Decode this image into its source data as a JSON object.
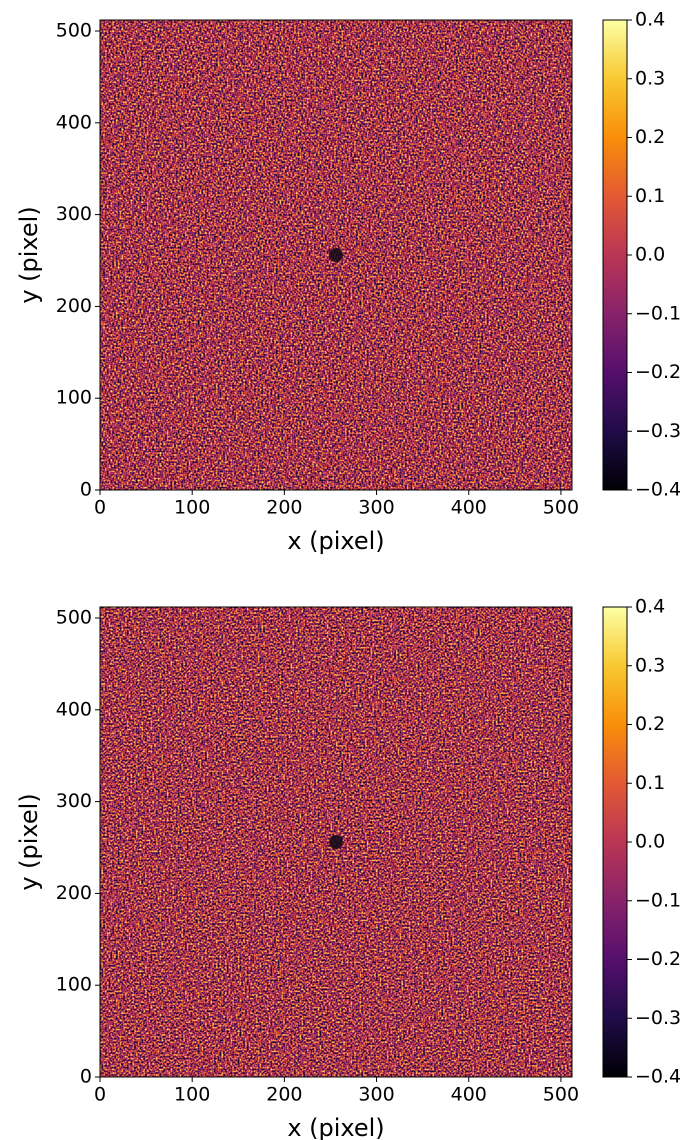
{
  "chart_data": [
    {
      "type": "image",
      "xlabel": "x (pixel)",
      "ylabel": "y (pixel)",
      "xlim": [
        0,
        512
      ],
      "ylim": [
        0,
        512
      ],
      "xticks": [
        0,
        100,
        200,
        300,
        400,
        500
      ],
      "yticks": [
        0,
        100,
        200,
        300,
        400,
        500
      ],
      "colorbar": {
        "colormap": "inferno",
        "lim": [
          -0.4,
          0.4
        ],
        "ticks": [
          {
            "value": -0.4,
            "label": "−0.4"
          },
          {
            "value": -0.3,
            "label": "−0.3"
          },
          {
            "value": -0.2,
            "label": "−0.2"
          },
          {
            "value": -0.1,
            "label": "−0.1"
          },
          {
            "value": 0,
            "label": "0.0"
          },
          0.1,
          0.2,
          0.3,
          0.4
        ]
      }
    },
    {
      "type": "image",
      "xlabel": "x (pixel)",
      "ylabel": "y (pixel)",
      "xlim": [
        0,
        512
      ],
      "ylim": [
        0,
        512
      ],
      "xticks": [
        0,
        100,
        200,
        300,
        400,
        500
      ],
      "yticks": [
        0,
        100,
        200,
        300,
        400,
        500
      ],
      "colorbar": {
        "colormap": "inferno",
        "lim": [
          -0.4,
          0.4
        ],
        "ticks": [
          {
            "value": -0.4,
            "label": "−0.4"
          },
          {
            "value": -0.3,
            "label": "−0.3"
          },
          {
            "value": -0.2,
            "label": "−0.2"
          },
          {
            "value": -0.1,
            "label": "−0.1"
          },
          {
            "value": 0,
            "label": "0.0"
          },
          0.1,
          0.2,
          0.3,
          0.4
        ]
      }
    }
  ]
}
